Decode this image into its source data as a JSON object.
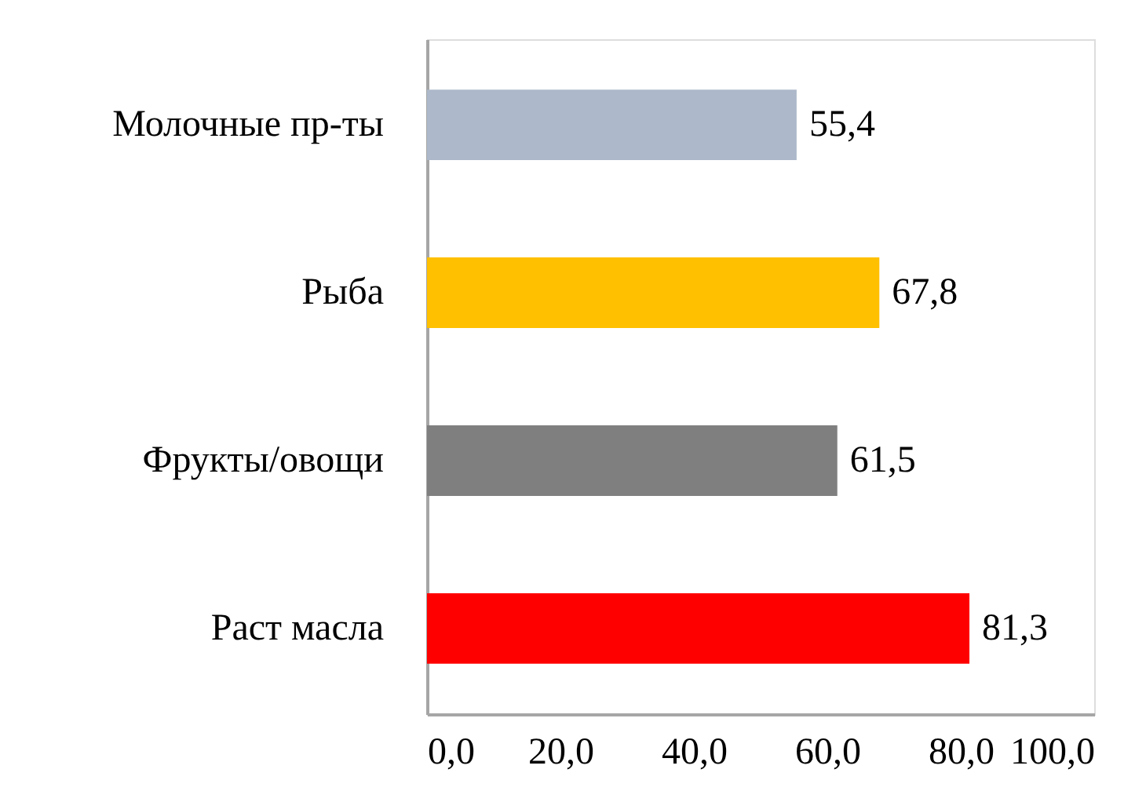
{
  "chart_data": {
    "type": "bar",
    "orientation": "horizontal",
    "categories": [
      "Молочные пр-ты",
      "Рыба",
      "Фрукты/овощи",
      "Раст масла"
    ],
    "values": [
      55.4,
      67.8,
      61.5,
      81.3
    ],
    "colors": [
      "#adb9ca",
      "#ffc000",
      "#7f7f7f",
      "#ff0000"
    ],
    "value_labels": [
      "55,4",
      "67,8",
      "61,5",
      "81,3"
    ],
    "xlim": [
      0,
      100
    ],
    "xticks": [
      {
        "value": 0,
        "label": "0,0"
      },
      {
        "value": 20,
        "label": "20,0"
      },
      {
        "value": 40,
        "label": "40,0"
      },
      {
        "value": 60,
        "label": "60,0"
      },
      {
        "value": 80,
        "label": "80,0"
      },
      {
        "value": 100,
        "label": "100,0"
      }
    ]
  }
}
